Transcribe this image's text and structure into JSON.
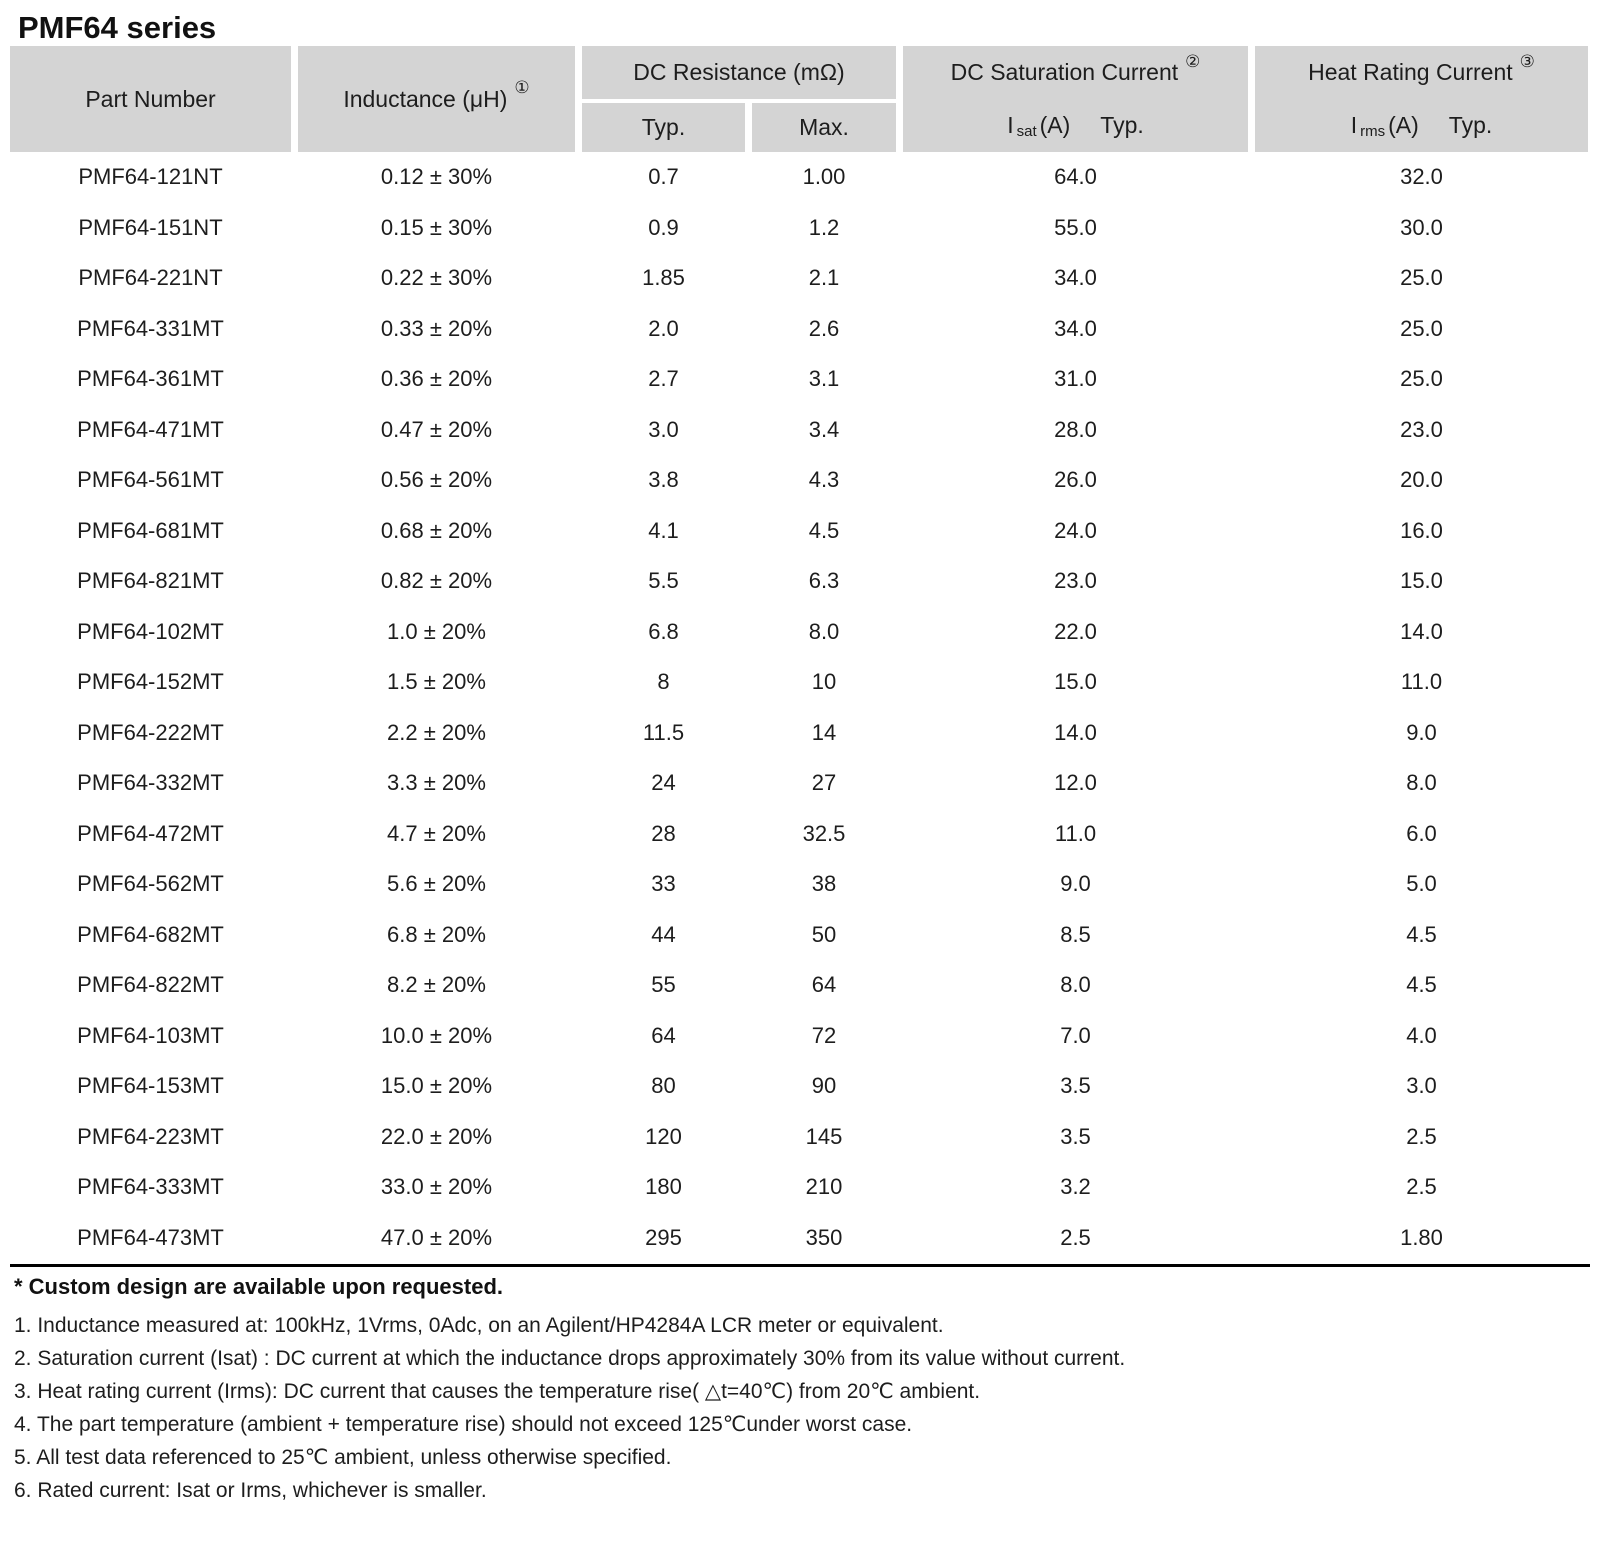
{
  "page_title": "PMF64 series",
  "colors": {
    "header_bg": "#d4d4d4",
    "text": "#1d1d1d",
    "rule": "#000000"
  },
  "table": {
    "header": {
      "part_number": "Part Number",
      "inductance_label": "Inductance (μH)",
      "inductance_ref": "①",
      "dc_resistance_label": "DC Resistance (mΩ)",
      "typ_label": "Typ.",
      "max_label": "Max.",
      "saturation_label": "DC Saturation Current",
      "saturation_ref": "②",
      "isat_symbol": "I",
      "isat_subscript": "sat",
      "isat_unit": "(A)",
      "isat_typ": "Typ.",
      "heat_label": "Heat Rating Current",
      "heat_ref": "③",
      "irms_symbol": "I",
      "irms_subscript": "rms",
      "irms_unit": "(A)",
      "irms_typ": "Typ."
    },
    "rows": [
      {
        "part": "PMF64-121NT",
        "inductance": "0.12 ± 30%",
        "dcr_typ": "0.7",
        "dcr_max": "1.00",
        "isat": "64.0",
        "irms": "32.0"
      },
      {
        "part": "PMF64-151NT",
        "inductance": "0.15 ± 30%",
        "dcr_typ": "0.9",
        "dcr_max": "1.2",
        "isat": "55.0",
        "irms": "30.0"
      },
      {
        "part": "PMF64-221NT",
        "inductance": "0.22 ± 30%",
        "dcr_typ": "1.85",
        "dcr_max": "2.1",
        "isat": "34.0",
        "irms": "25.0"
      },
      {
        "part": "PMF64-331MT",
        "inductance": "0.33 ± 20%",
        "dcr_typ": "2.0",
        "dcr_max": "2.6",
        "isat": "34.0",
        "irms": "25.0"
      },
      {
        "part": "PMF64-361MT",
        "inductance": "0.36 ± 20%",
        "dcr_typ": "2.7",
        "dcr_max": "3.1",
        "isat": "31.0",
        "irms": "25.0"
      },
      {
        "part": "PMF64-471MT",
        "inductance": "0.47 ± 20%",
        "dcr_typ": "3.0",
        "dcr_max": "3.4",
        "isat": "28.0",
        "irms": "23.0"
      },
      {
        "part": "PMF64-561MT",
        "inductance": "0.56 ± 20%",
        "dcr_typ": "3.8",
        "dcr_max": "4.3",
        "isat": "26.0",
        "irms": "20.0"
      },
      {
        "part": "PMF64-681MT",
        "inductance": "0.68 ± 20%",
        "dcr_typ": "4.1",
        "dcr_max": "4.5",
        "isat": "24.0",
        "irms": "16.0"
      },
      {
        "part": "PMF64-821MT",
        "inductance": "0.82 ± 20%",
        "dcr_typ": "5.5",
        "dcr_max": "6.3",
        "isat": "23.0",
        "irms": "15.0"
      },
      {
        "part": "PMF64-102MT",
        "inductance": "1.0 ± 20%",
        "dcr_typ": "6.8",
        "dcr_max": "8.0",
        "isat": "22.0",
        "irms": "14.0"
      },
      {
        "part": "PMF64-152MT",
        "inductance": "1.5 ± 20%",
        "dcr_typ": "8",
        "dcr_max": "10",
        "isat": "15.0",
        "irms": "11.0"
      },
      {
        "part": "PMF64-222MT",
        "inductance": "2.2 ± 20%",
        "dcr_typ": "11.5",
        "dcr_max": "14",
        "isat": "14.0",
        "irms": "9.0"
      },
      {
        "part": "PMF64-332MT",
        "inductance": "3.3 ± 20%",
        "dcr_typ": "24",
        "dcr_max": "27",
        "isat": "12.0",
        "irms": "8.0"
      },
      {
        "part": "PMF64-472MT",
        "inductance": "4.7 ± 20%",
        "dcr_typ": "28",
        "dcr_max": "32.5",
        "isat": "11.0",
        "irms": "6.0"
      },
      {
        "part": "PMF64-562MT",
        "inductance": "5.6 ± 20%",
        "dcr_typ": "33",
        "dcr_max": "38",
        "isat": "9.0",
        "irms": "5.0"
      },
      {
        "part": "PMF64-682MT",
        "inductance": "6.8 ± 20%",
        "dcr_typ": "44",
        "dcr_max": "50",
        "isat": "8.5",
        "irms": "4.5"
      },
      {
        "part": "PMF64-822MT",
        "inductance": "8.2 ± 20%",
        "dcr_typ": "55",
        "dcr_max": "64",
        "isat": "8.0",
        "irms": "4.5"
      },
      {
        "part": "PMF64-103MT",
        "inductance": "10.0 ± 20%",
        "dcr_typ": "64",
        "dcr_max": "72",
        "isat": "7.0",
        "irms": "4.0"
      },
      {
        "part": "PMF64-153MT",
        "inductance": "15.0 ± 20%",
        "dcr_typ": "80",
        "dcr_max": "90",
        "isat": "3.5",
        "irms": "3.0"
      },
      {
        "part": "PMF64-223MT",
        "inductance": "22.0 ± 20%",
        "dcr_typ": "120",
        "dcr_max": "145",
        "isat": "3.5",
        "irms": "2.5"
      },
      {
        "part": "PMF64-333MT",
        "inductance": "33.0 ± 20%",
        "dcr_typ": "180",
        "dcr_max": "210",
        "isat": "3.2",
        "irms": "2.5"
      },
      {
        "part": "PMF64-473MT",
        "inductance": "47.0 ± 20%",
        "dcr_typ": "295",
        "dcr_max": "350",
        "isat": "2.5",
        "irms": "1.80"
      }
    ]
  },
  "footnotes": {
    "custom_note": "* Custom design are available upon requested.",
    "items": [
      "1. Inductance measured at: 100kHz, 1Vrms, 0Adc, on an Agilent/HP4284A LCR meter or equivalent.",
      "2. Saturation current (Isat) : DC current at which the inductance drops approximately 30% from its value without current.",
      "3. Heat rating current (Irms): DC current that causes the temperature rise( △t=40℃) from 20℃ ambient.",
      "4. The part temperature (ambient + temperature rise) should not exceed 125℃under worst case.",
      "5. All test data referenced to 25℃ ambient, unless otherwise specified.",
      "6. Rated current: Isat or Irms, whichever is smaller."
    ]
  }
}
